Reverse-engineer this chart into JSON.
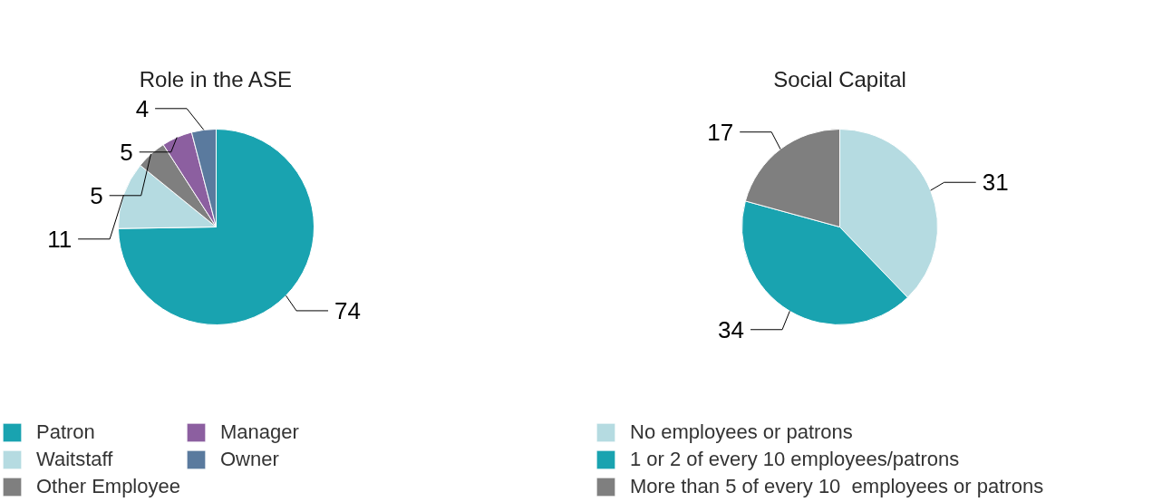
{
  "chart_data": [
    {
      "type": "pie",
      "title": "Role in the ASE",
      "categories": [
        "Patron",
        "Waitstaff",
        "Other Employee",
        "Manager",
        "Owner"
      ],
      "values": [
        74,
        11,
        5,
        5,
        4
      ],
      "colors": [
        "#19a3b0",
        "#b5dbe1",
        "#7f7f7f",
        "#8c5fa0",
        "#5a7a9e"
      ],
      "data_labels": true,
      "legend": "bottom"
    },
    {
      "type": "pie",
      "title": "Social Capital",
      "categories": [
        "No employees or patrons",
        "1 or 2 of every 10 employees/patrons",
        "More than 5 of every 10  employees or patrons"
      ],
      "values": [
        31,
        34,
        17
      ],
      "colors": [
        "#b5dbe1",
        "#19a3b0",
        "#7f7f7f"
      ],
      "data_labels": true,
      "legend": "bottom"
    }
  ]
}
